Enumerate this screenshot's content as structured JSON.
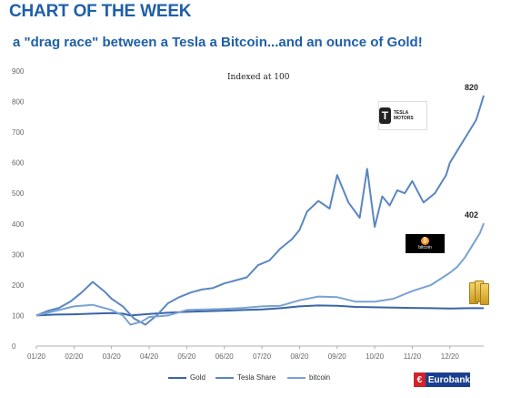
{
  "header": {
    "headline": "CHART OF THE WEEK",
    "subtitle": "a \"drag race\" between a Tesla a Bitcoin...and an ounce of Gold!"
  },
  "chart_data": {
    "type": "line",
    "note": "Indexed at 100",
    "x_ticks": [
      "01/20",
      "02/20",
      "03/20",
      "04/20",
      "05/20",
      "06/20",
      "07/20",
      "08/20",
      "09/20",
      "10/20",
      "11/20",
      "12/20"
    ],
    "ylim": [
      0,
      900
    ],
    "y_ticks": [
      0,
      100,
      200,
      300,
      400,
      500,
      600,
      700,
      800,
      900
    ],
    "grid": false,
    "legend_position": "bottom",
    "series": [
      {
        "name": "Gold",
        "color": "#3a65a8",
        "x": [
          0,
          0.5,
          1,
          1.5,
          2,
          2.3,
          2.5,
          3,
          3.5,
          4,
          4.5,
          5,
          5.5,
          6,
          6.5,
          7,
          7.5,
          8,
          8.5,
          9,
          9.5,
          10,
          10.5,
          11,
          11.5,
          11.9
        ],
        "y": [
          100,
          103,
          104,
          106,
          108,
          106,
          100,
          105,
          109,
          112,
          114,
          116,
          118,
          120,
          124,
          130,
          133,
          132,
          128,
          127,
          126,
          125,
          124,
          123,
          124,
          124
        ]
      },
      {
        "name": "Tesla Share",
        "color": "#5a87c0",
        "x": [
          0,
          0.3,
          0.6,
          0.9,
          1.2,
          1.5,
          1.8,
          2.0,
          2.3,
          2.6,
          2.9,
          3.2,
          3.5,
          3.8,
          4.1,
          4.4,
          4.7,
          5.0,
          5.3,
          5.6,
          5.9,
          6.2,
          6.5,
          6.8,
          7.0,
          7.2,
          7.5,
          7.8,
          8.0,
          8.3,
          8.6,
          8.8,
          9.0,
          9.2,
          9.4,
          9.6,
          9.8,
          10.0,
          10.3,
          10.6,
          10.9,
          11.0,
          11.2,
          11.4,
          11.6,
          11.7,
          11.8,
          11.9
        ],
        "y": [
          100,
          115,
          125,
          145,
          175,
          210,
          180,
          155,
          130,
          90,
          70,
          100,
          140,
          160,
          175,
          185,
          190,
          205,
          215,
          225,
          265,
          280,
          320,
          350,
          380,
          440,
          475,
          450,
          560,
          470,
          420,
          580,
          390,
          490,
          460,
          510,
          500,
          540,
          470,
          500,
          560,
          600,
          640,
          680,
          720,
          740,
          780,
          820
        ]
      },
      {
        "name": "bitcoin",
        "color": "#7aa2d2",
        "x": [
          0,
          0.5,
          1,
          1.5,
          2,
          2.3,
          2.5,
          2.8,
          3,
          3.5,
          4,
          4.5,
          5,
          5.5,
          6,
          6.5,
          7,
          7.5,
          8,
          8.5,
          9,
          9.5,
          10,
          10.5,
          11,
          11.2,
          11.4,
          11.6,
          11.8,
          11.9
        ],
        "y": [
          100,
          115,
          130,
          135,
          118,
          100,
          70,
          80,
          95,
          100,
          118,
          120,
          122,
          125,
          130,
          132,
          150,
          162,
          160,
          145,
          145,
          155,
          180,
          200,
          240,
          260,
          290,
          330,
          370,
          402
        ]
      }
    ],
    "annotations": [
      {
        "text": "820",
        "x": 11.9,
        "y": 820
      },
      {
        "text": "402",
        "x": 11.9,
        "y": 402
      }
    ]
  },
  "logos": {
    "tesla_text": "TESLA MOTORS",
    "tesla_mark": "T",
    "bitcoin_text": "bitcoin",
    "bitcoin_mark": "₿",
    "eurobank_text": "Eurobank",
    "eurobank_mark": "€"
  }
}
